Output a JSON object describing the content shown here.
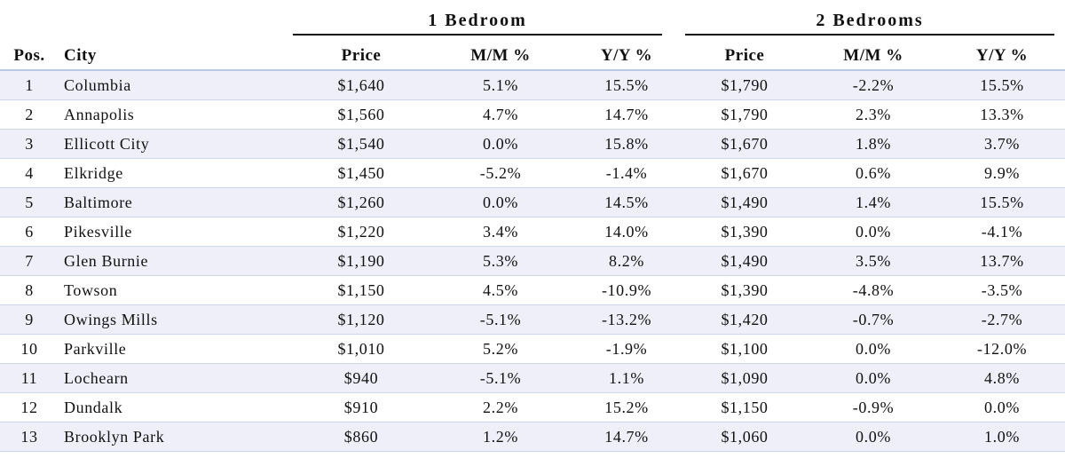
{
  "groups": {
    "one_bedroom": "1 Bedroom",
    "two_bedrooms": "2 Bedrooms"
  },
  "columns": {
    "pos": "Pos.",
    "city": "City",
    "price1": "Price",
    "mm1": "M/M %",
    "yy1": "Y/Y %",
    "price2": "Price",
    "mm2": "M/M %",
    "yy2": "Y/Y %"
  },
  "rows": [
    {
      "pos": "1",
      "city": "Columbia",
      "price1": "$1,640",
      "mm1": "5.1%",
      "yy1": "15.5%",
      "price2": "$1,790",
      "mm2": "-2.2%",
      "yy2": "15.5%"
    },
    {
      "pos": "2",
      "city": "Annapolis",
      "price1": "$1,560",
      "mm1": "4.7%",
      "yy1": "14.7%",
      "price2": "$1,790",
      "mm2": "2.3%",
      "yy2": "13.3%"
    },
    {
      "pos": "3",
      "city": "Ellicott City",
      "price1": "$1,540",
      "mm1": "0.0%",
      "yy1": "15.8%",
      "price2": "$1,670",
      "mm2": "1.8%",
      "yy2": "3.7%"
    },
    {
      "pos": "4",
      "city": "Elkridge",
      "price1": "$1,450",
      "mm1": "-5.2%",
      "yy1": "-1.4%",
      "price2": "$1,670",
      "mm2": "0.6%",
      "yy2": "9.9%"
    },
    {
      "pos": "5",
      "city": "Baltimore",
      "price1": "$1,260",
      "mm1": "0.0%",
      "yy1": "14.5%",
      "price2": "$1,490",
      "mm2": "1.4%",
      "yy2": "15.5%"
    },
    {
      "pos": "6",
      "city": "Pikesville",
      "price1": "$1,220",
      "mm1": "3.4%",
      "yy1": "14.0%",
      "price2": "$1,390",
      "mm2": "0.0%",
      "yy2": "-4.1%"
    },
    {
      "pos": "7",
      "city": "Glen Burnie",
      "price1": "$1,190",
      "mm1": "5.3%",
      "yy1": "8.2%",
      "price2": "$1,490",
      "mm2": "3.5%",
      "yy2": "13.7%"
    },
    {
      "pos": "8",
      "city": "Towson",
      "price1": "$1,150",
      "mm1": "4.5%",
      "yy1": "-10.9%",
      "price2": "$1,390",
      "mm2": "-4.8%",
      "yy2": "-3.5%"
    },
    {
      "pos": "9",
      "city": "Owings Mills",
      "price1": "$1,120",
      "mm1": "-5.1%",
      "yy1": "-13.2%",
      "price2": "$1,420",
      "mm2": "-0.7%",
      "yy2": "-2.7%"
    },
    {
      "pos": "10",
      "city": "Parkville",
      "price1": "$1,010",
      "mm1": "5.2%",
      "yy1": "-1.9%",
      "price2": "$1,100",
      "mm2": "0.0%",
      "yy2": "-12.0%"
    },
    {
      "pos": "11",
      "city": "Lochearn",
      "price1": "$940",
      "mm1": "-5.1%",
      "yy1": "1.1%",
      "price2": "$1,090",
      "mm2": "0.0%",
      "yy2": "4.8%"
    },
    {
      "pos": "12",
      "city": "Dundalk",
      "price1": "$910",
      "mm1": "2.2%",
      "yy1": "15.2%",
      "price2": "$1,150",
      "mm2": "-0.9%",
      "yy2": "0.0%"
    },
    {
      "pos": "13",
      "city": "Brooklyn Park",
      "price1": "$860",
      "mm1": "1.2%",
      "yy1": "14.7%",
      "price2": "$1,060",
      "mm2": "0.0%",
      "yy2": "1.0%"
    }
  ]
}
